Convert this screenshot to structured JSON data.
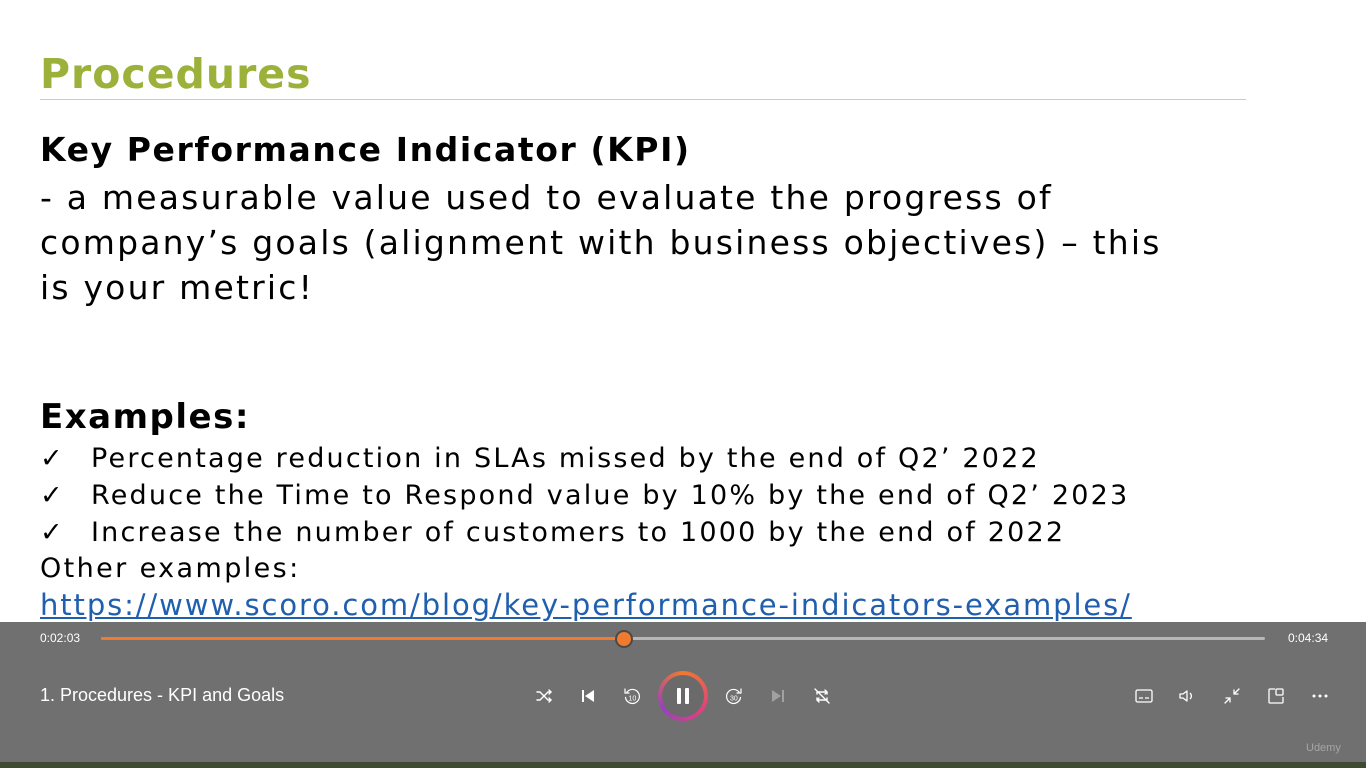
{
  "slide": {
    "title": "Procedures",
    "kpi_heading": "Key Performance Indicator (KPI)",
    "kpi_definition": "-  a measurable value used to evaluate the progress of\ncompany’s goals (alignment with business objectives) – this\nis your metric!",
    "examples_heading": "Examples:",
    "check_mark": "✓",
    "examples": [
      "Percentage reduction in SLAs missed by the end of Q2’ 2022",
      "Reduce the Time to Respond value by 10% by the end of Q2’ 2023",
      "Increase the number of customers to 1000 by the end of 2022"
    ],
    "other_label": "Other examples:",
    "link_text": "https://www.scoro.com/blog/key-performance-indicators-examples/"
  },
  "colors": {
    "title_green": "#9bb13a",
    "link_blue": "#1f5fae",
    "player_bg": "#707070",
    "accent_orange": "#f07a2e"
  },
  "player": {
    "elapsed": "0:02:03",
    "total": "0:04:34",
    "progress_fraction": 0.449,
    "now_playing": "1. Procedures - KPI and Goals",
    "watermark": "Udemy",
    "icons": {
      "shuffle": "shuffle-icon",
      "previous": "skip-previous-icon",
      "rewind": "rewind-10-icon",
      "pause": "pause-icon",
      "forward": "forward-30-icon",
      "next": "skip-next-icon",
      "repeat": "repeat-off-icon",
      "captions": "captions-icon",
      "volume": "volume-icon",
      "exit_fullscreen": "exit-fullscreen-icon",
      "mini_player": "mini-player-icon",
      "more": "more-options-icon"
    }
  }
}
